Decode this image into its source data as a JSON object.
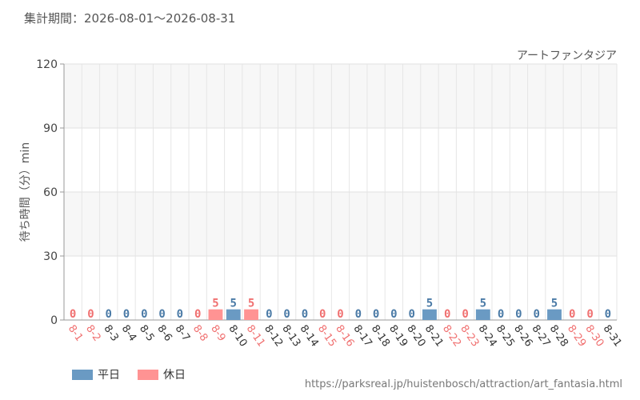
{
  "header": {
    "period_label": "集計期間：2026-08-01～2026-08-31"
  },
  "footer": {
    "source_url": "https://parksreal.jp/huistenbosch/attraction/art_fantasia.html"
  },
  "legend": {
    "items": [
      {
        "label": "平日",
        "color": "#6a9ac3"
      },
      {
        "label": "休日",
        "color": "#ff9393"
      }
    ]
  },
  "chart_data": {
    "type": "bar",
    "attraction": "アートファンタジア",
    "ylabel": "待ち時間（分）min",
    "ylim": [
      0,
      120
    ],
    "yticks": [
      0,
      30,
      60,
      90,
      120
    ],
    "grid": true,
    "categories": [
      "8-1",
      "8-2",
      "8-3",
      "8-4",
      "8-5",
      "8-6",
      "8-7",
      "8-8",
      "8-9",
      "8-10",
      "8-11",
      "8-12",
      "8-13",
      "8-14",
      "8-15",
      "8-16",
      "8-17",
      "8-18",
      "8-19",
      "8-20",
      "8-21",
      "8-22",
      "8-23",
      "8-24",
      "8-25",
      "8-26",
      "8-27",
      "8-28",
      "8-29",
      "8-30",
      "8-31"
    ],
    "values": [
      0,
      0,
      0,
      0,
      0,
      0,
      0,
      0,
      5,
      5,
      5,
      0,
      0,
      0,
      0,
      0,
      0,
      0,
      0,
      0,
      5,
      0,
      0,
      5,
      0,
      0,
      0,
      5,
      0,
      0,
      0
    ],
    "day_types": [
      "休日",
      "休日",
      "平日",
      "平日",
      "平日",
      "平日",
      "平日",
      "休日",
      "休日",
      "平日",
      "休日",
      "平日",
      "平日",
      "平日",
      "休日",
      "休日",
      "平日",
      "平日",
      "平日",
      "平日",
      "平日",
      "休日",
      "休日",
      "平日",
      "平日",
      "平日",
      "平日",
      "平日",
      "休日",
      "休日",
      "平日"
    ],
    "colors": {
      "平日": "#6a9ac3",
      "休日": "#ff9393"
    },
    "label_colors": {
      "平日": "#4a7aa6",
      "休日": "#f07070"
    }
  }
}
